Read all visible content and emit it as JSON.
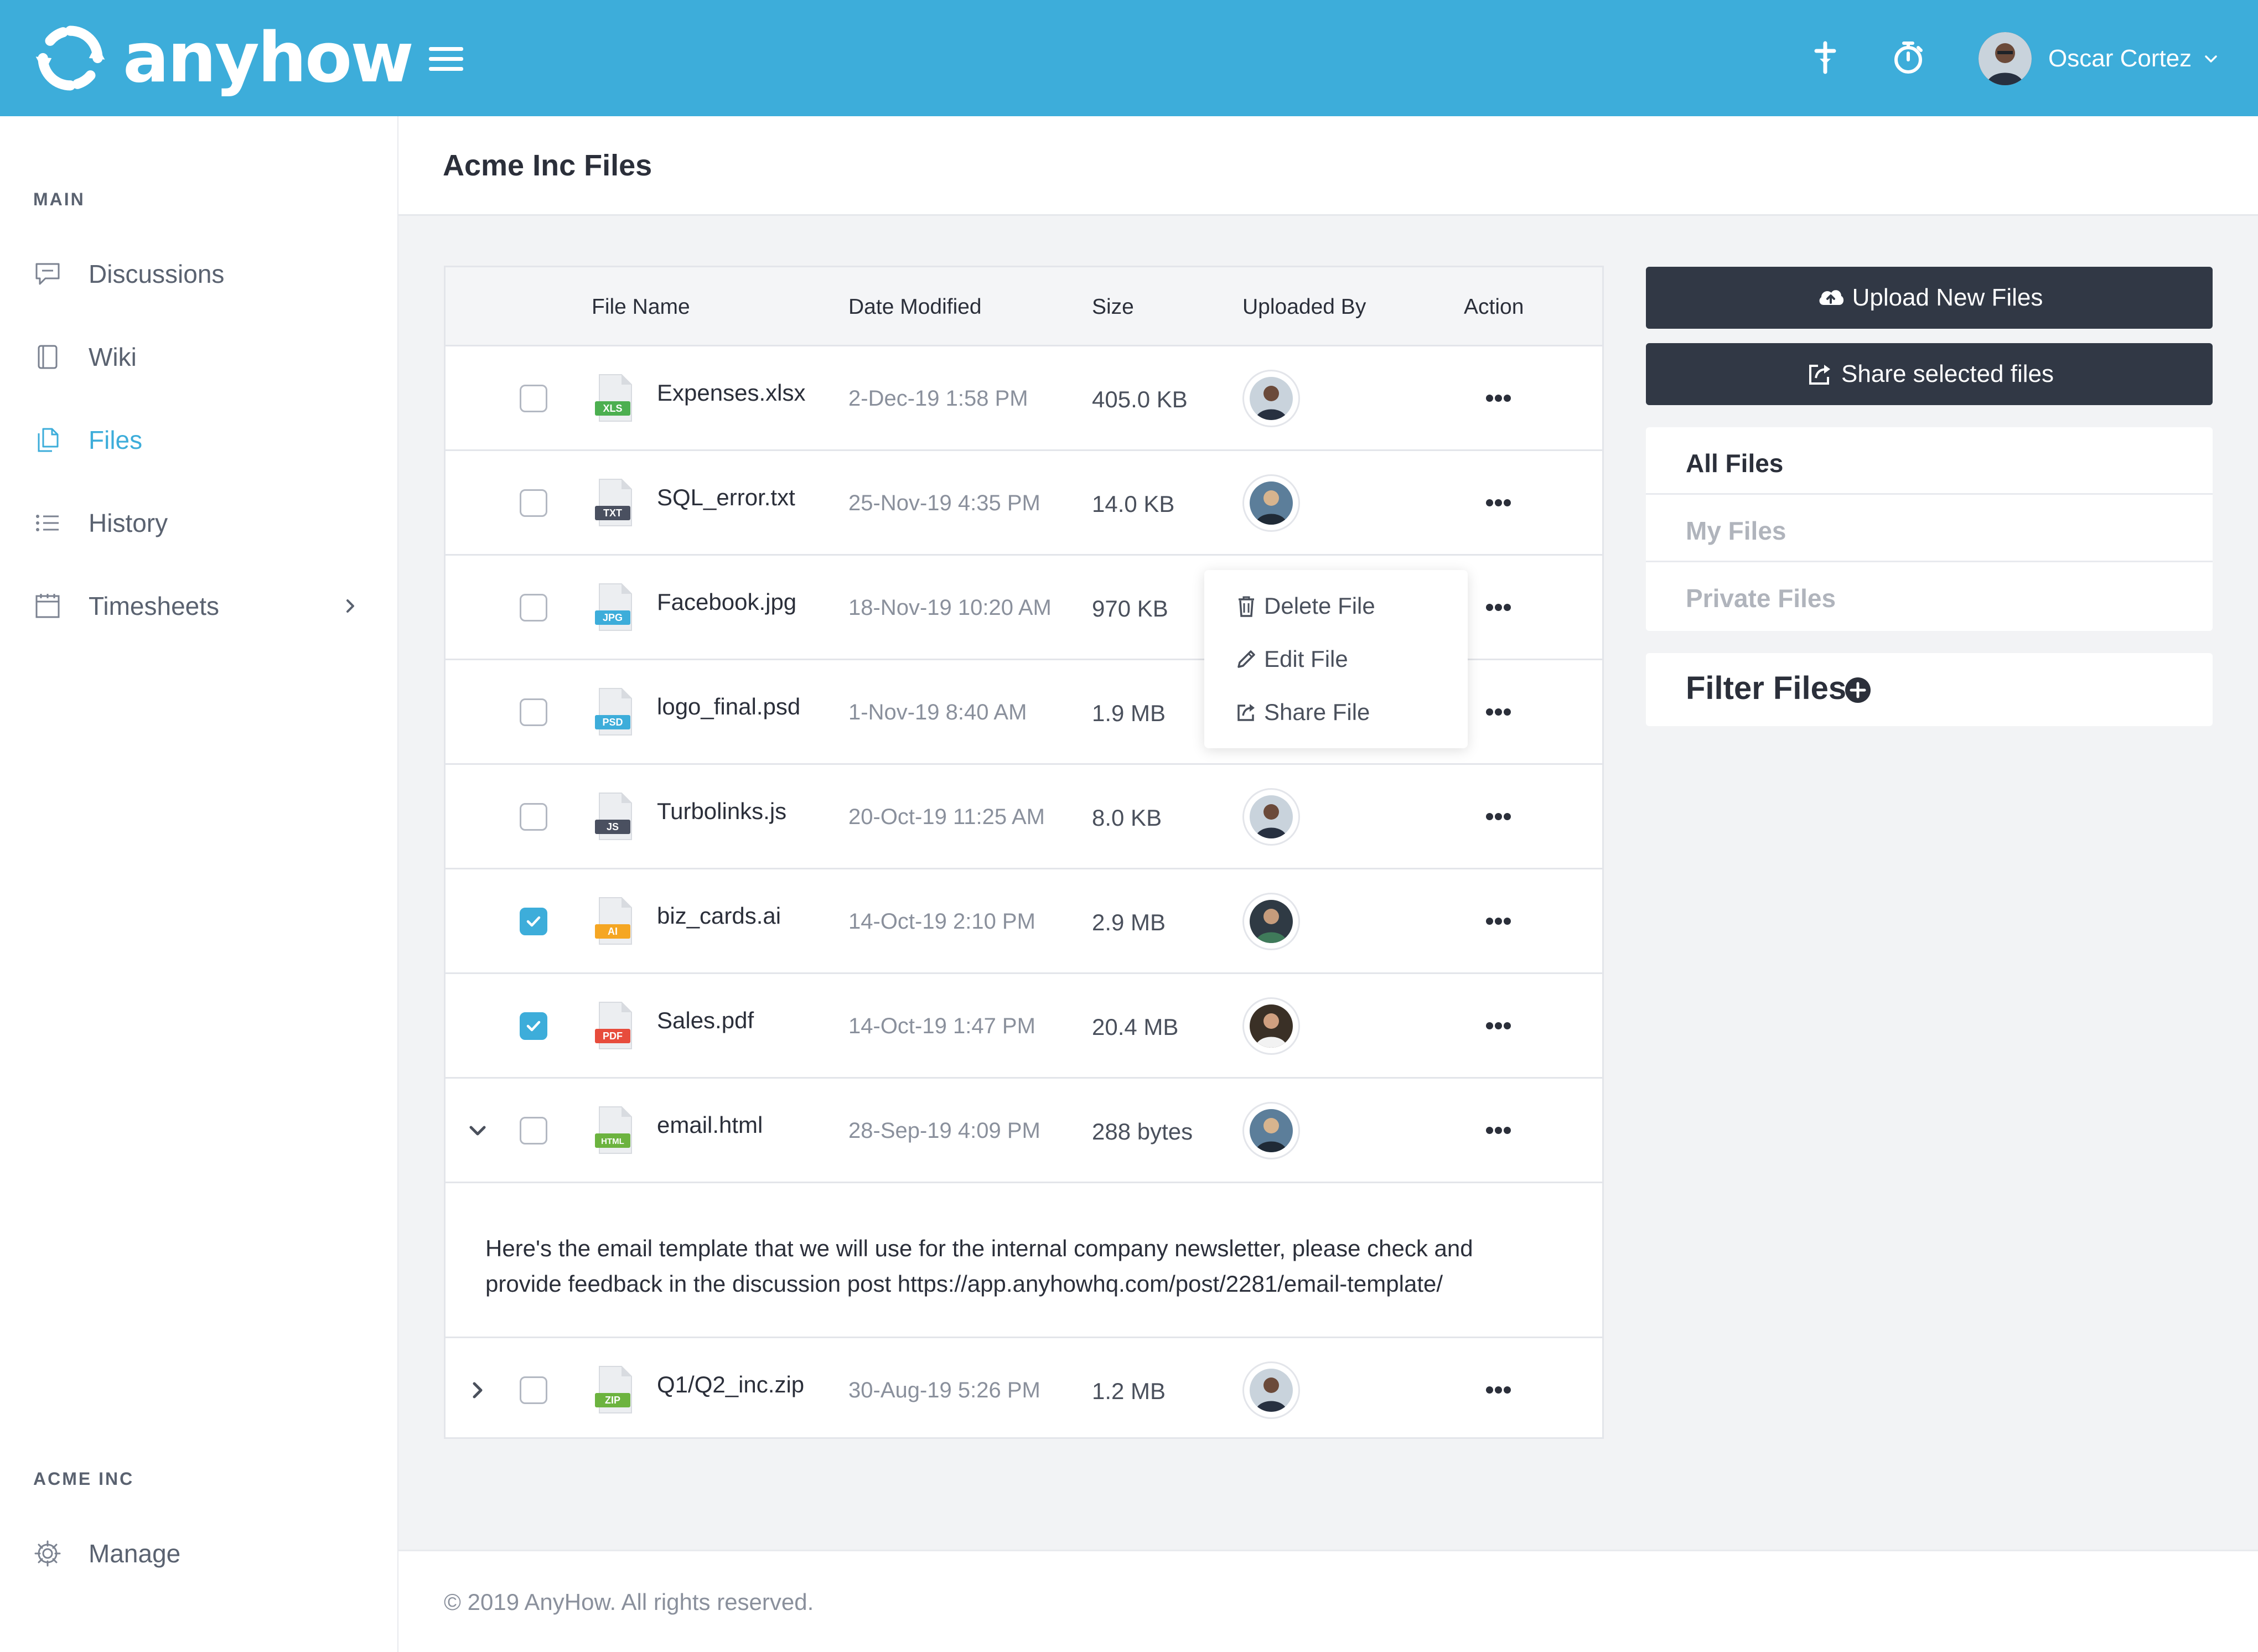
{
  "brand": {
    "name": "anyhow",
    "icon": "refresh-logo-icon"
  },
  "topbar": {
    "icons": [
      "pin-icon",
      "stopwatch-icon"
    ],
    "user_name": "Oscar Cortez"
  },
  "sidebar": {
    "section_main": "MAIN",
    "items": [
      {
        "label": "Discussions",
        "icon": "chat-icon"
      },
      {
        "label": "Wiki",
        "icon": "book-icon"
      },
      {
        "label": "Files",
        "icon": "files-icon",
        "active": true
      },
      {
        "label": "History",
        "icon": "list-icon"
      },
      {
        "label": "Timesheets",
        "icon": "calendar-icon"
      }
    ],
    "section_org": "ACME INC",
    "org_items": [
      {
        "label": "Manage",
        "icon": "gear-icon"
      }
    ]
  },
  "page": {
    "title": "Acme Inc Files"
  },
  "table": {
    "headers": [
      "File Name",
      "Date Modified",
      "Size",
      "Uploaded By",
      "Action"
    ],
    "rows": [
      {
        "type": "XLS",
        "type_color": "#4caf50",
        "name": "Expenses.xlsx",
        "date": "2-Dec-19 1:58 PM",
        "size": "405.0 KB",
        "checked": false
      },
      {
        "type": "TXT",
        "type_color": "#4a5060",
        "name": "SQL_error.txt",
        "date": "25-Nov-19 4:35 PM",
        "size": "14.0 KB",
        "checked": false
      },
      {
        "type": "JPG",
        "type_color": "#3dadda",
        "name": "Facebook.jpg",
        "date": "18-Nov-19 10:20 AM",
        "size": "970 KB",
        "checked": false
      },
      {
        "type": "PSD",
        "type_color": "#3dadda",
        "name": "logo_final.psd",
        "date": "1-Nov-19 8:40 AM",
        "size": "1.9 MB",
        "checked": false
      },
      {
        "type": "JS",
        "type_color": "#4a5060",
        "name": "Turbolinks.js",
        "date": "20-Oct-19 11:25 AM",
        "size": "8.0 KB",
        "checked": false
      },
      {
        "type": "AI",
        "type_color": "#f5a623",
        "name": "biz_cards.ai",
        "date": "14-Oct-19 2:10 PM",
        "size": "2.9 MB",
        "checked": true
      },
      {
        "type": "PDF",
        "type_color": "#e74c3c",
        "name": "Sales.pdf",
        "date": "14-Oct-19 1:47 PM",
        "size": "20.4 MB",
        "checked": true
      },
      {
        "type": "HTML",
        "type_color": "#6cb33f",
        "name": "email.html",
        "date": "28-Sep-19 4:09 PM",
        "size": "288 bytes",
        "checked": false,
        "expanded": true
      },
      {
        "type": "ZIP",
        "type_color": "#6cb33f",
        "name": "Q1/Q2_inc.zip",
        "date": "30-Aug-19 5:26 PM",
        "size": "1.2 MB",
        "checked": false,
        "expanded": false
      }
    ],
    "note": "Here's the email template that we will use for the internal company newsletter, please check and provide feedback in the discussion post https://app.anyhowhq.com/post/2281/email-template/"
  },
  "context_menu": {
    "items": [
      {
        "label": "Delete File",
        "icon": "trash-icon"
      },
      {
        "label": "Edit File",
        "icon": "pencil-icon"
      },
      {
        "label": "Share File",
        "icon": "share-icon"
      }
    ]
  },
  "actions": {
    "upload": "Upload New Files",
    "share": "Share selected files"
  },
  "file_filters": {
    "items": [
      "All Files",
      "My Files",
      "Private Files"
    ],
    "active": "All Files",
    "filter_label": "Filter Files"
  },
  "footer": {
    "text": "© 2019 AnyHow. All rights reserved."
  }
}
